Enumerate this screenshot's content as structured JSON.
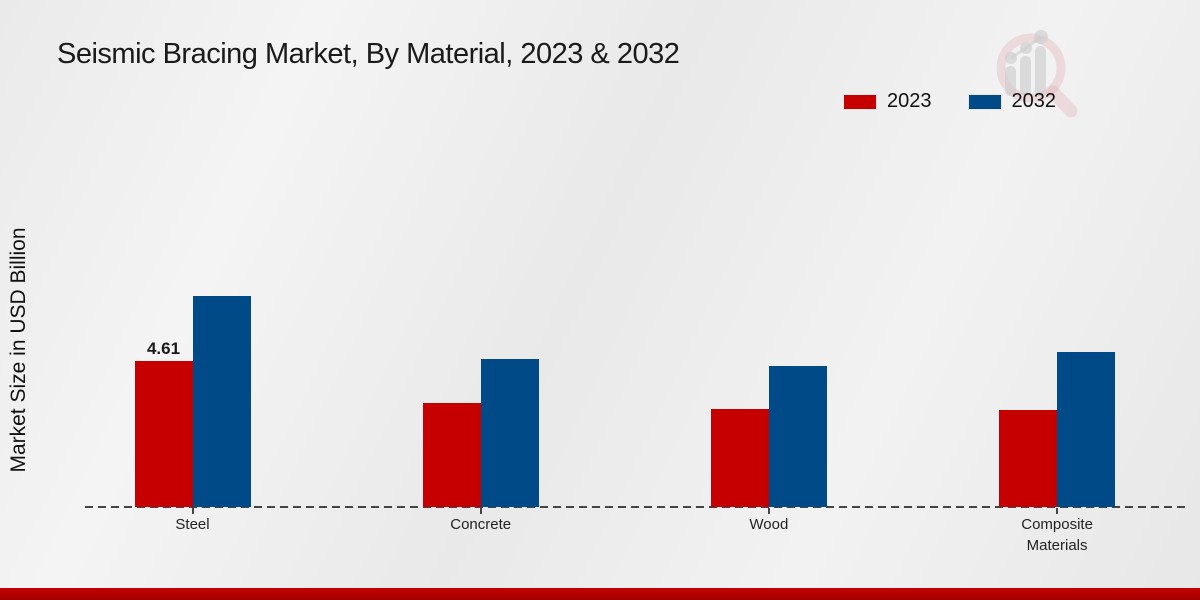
{
  "page": {
    "title": "Seismic Bracing Market, By Material, 2023 & 2032"
  },
  "chart_data": {
    "type": "bar",
    "title": "Seismic Bracing Market, By Material, 2023 & 2032",
    "xlabel": "",
    "ylabel": "Market Size in USD Billion",
    "categories": [
      "Steel",
      "Concrete",
      "Wood",
      "Composite Materials"
    ],
    "series": [
      {
        "name": "2023",
        "color": "#c60000",
        "values": [
          4.61,
          3.28,
          3.11,
          3.08
        ]
      },
      {
        "name": "2032",
        "color": "#004a87",
        "values": [
          6.66,
          4.69,
          4.47,
          4.89
        ]
      }
    ],
    "data_labels": [
      {
        "series": "2023",
        "category": "Steel",
        "text": "4.61"
      }
    ],
    "ylim": [
      0,
      7.5
    ],
    "grid": false,
    "legend_position": "top-right",
    "baseline_style": "dashed",
    "accent_colors": {
      "footer_red": "#bd0000",
      "axis": "#444444"
    }
  },
  "watermark": {
    "name": "market-research-future-logo"
  }
}
